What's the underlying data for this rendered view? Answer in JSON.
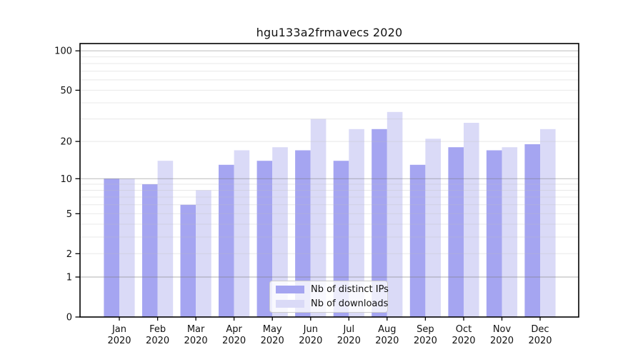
{
  "figure": {
    "title": "hgu133a2frmavecs 2020"
  },
  "chart_data": {
    "type": "bar",
    "title": "hgu133a2frmavecs 2020",
    "categories": [
      "Jan 2020",
      "Feb 2020",
      "Mar 2020",
      "Apr 2020",
      "May 2020",
      "Jun 2020",
      "Jul 2020",
      "Aug 2020",
      "Sep 2020",
      "Oct 2020",
      "Nov 2020",
      "Dec 2020"
    ],
    "series": [
      {
        "name": "Nb of distinct IPs",
        "color": "#a5a5f1",
        "values": [
          10,
          9,
          6,
          13,
          14,
          17,
          14,
          25,
          13,
          18,
          17,
          19
        ]
      },
      {
        "name": "Nb of downloads",
        "color": "#dadaf7",
        "values": [
          10,
          14,
          8,
          17,
          18,
          30,
          25,
          34,
          21,
          28,
          18,
          25
        ]
      }
    ],
    "xlabel": "",
    "ylabel": "",
    "yscale": "log1p",
    "ylim": [
      0,
      115
    ],
    "yticks": [
      0,
      1,
      2,
      5,
      10,
      20,
      50,
      100
    ],
    "y_gridlines": {
      "major": [
        1,
        10,
        100
      ],
      "minor": [
        2,
        3,
        4,
        5,
        6,
        7,
        8,
        9,
        20,
        30,
        40,
        50,
        60,
        70,
        80,
        90
      ]
    },
    "grid": true,
    "legend_position": "lower center",
    "axis_color": "#000000",
    "text_color": "#111111"
  }
}
